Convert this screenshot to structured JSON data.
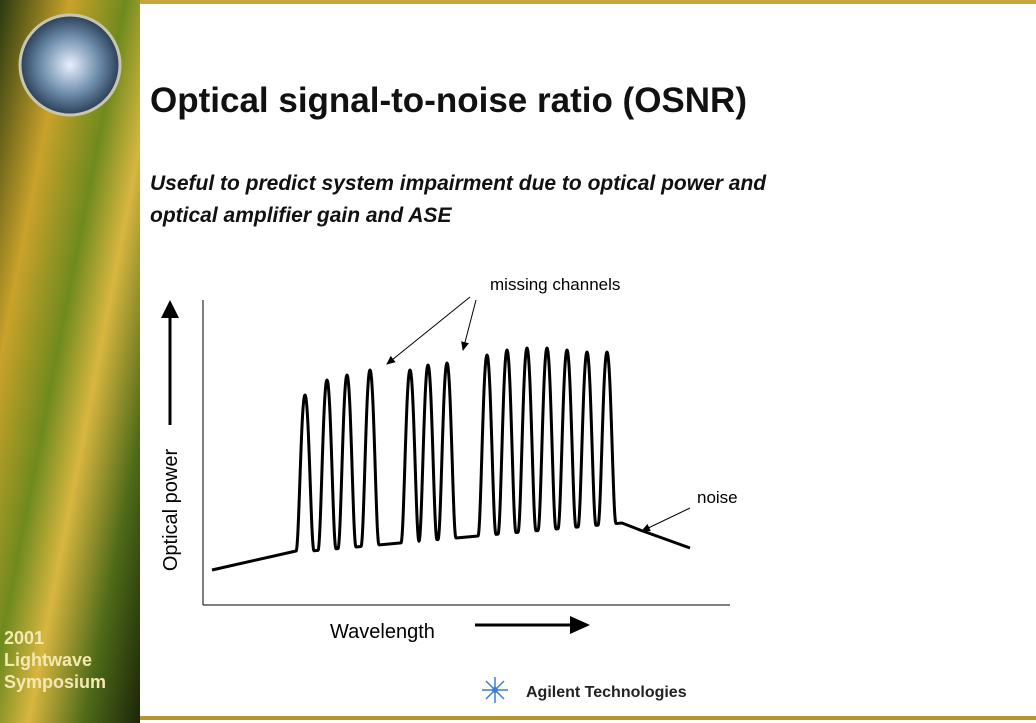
{
  "sidebar": {
    "lines": [
      "2001",
      "Lightwave",
      "Symposium"
    ]
  },
  "slide": {
    "title": "Optical signal-to-noise ratio (OSNR)",
    "subtitle": [
      "Useful to predict system impairment due to optical power and",
      "optical amplifier gain and ASE"
    ]
  },
  "figure": {
    "y_label": "Optical power",
    "x_label": "Wavelength",
    "annotations": [
      "missing channels",
      "noise"
    ]
  },
  "footer": {
    "logo_text": "Agilent Technologies"
  }
}
